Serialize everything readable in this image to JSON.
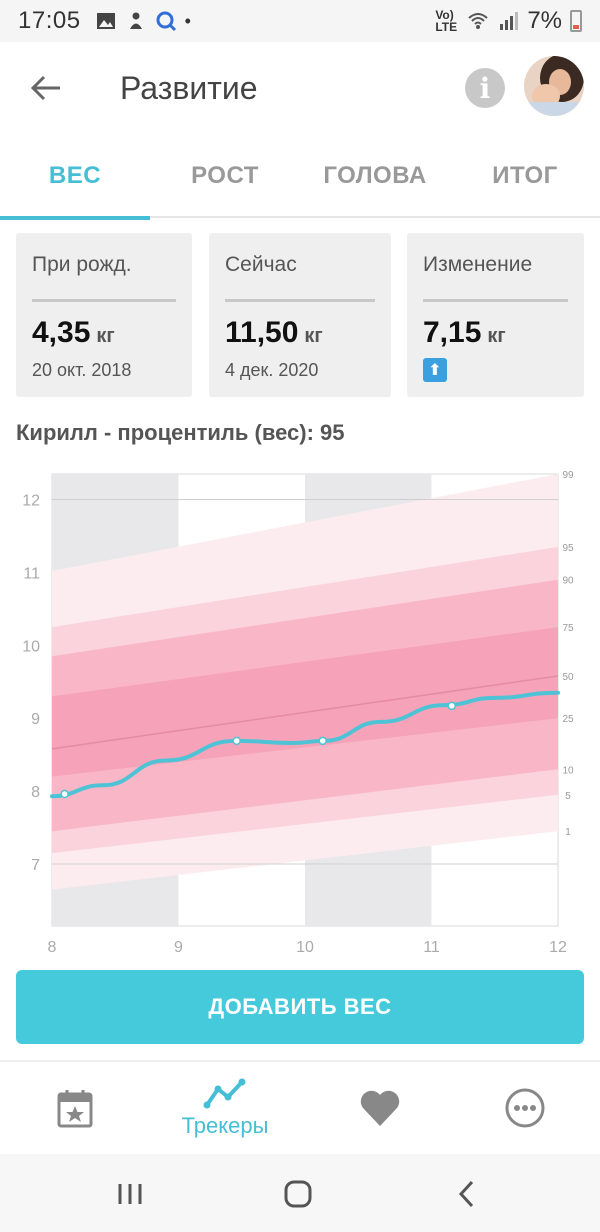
{
  "status_bar": {
    "time": "17:05",
    "network": "Vo) LTE",
    "battery": "7%"
  },
  "app_bar": {
    "title": "Развитие",
    "info_label": "i"
  },
  "tabs": [
    {
      "label": "ВЕС",
      "active": true
    },
    {
      "label": "РОСТ",
      "active": false
    },
    {
      "label": "ГОЛОВА",
      "active": false
    },
    {
      "label": "ИТОГ",
      "active": false
    }
  ],
  "cards": {
    "birth": {
      "title": "При рожд.",
      "value": "4,35",
      "unit": "кг",
      "date": "20 окт. 2018"
    },
    "now": {
      "title": "Сейчас",
      "value": "11,50",
      "unit": "кг",
      "date": "4 дек. 2020"
    },
    "change": {
      "title": "Изменение",
      "value": "7,15",
      "unit": "кг",
      "arrow": "⬆"
    }
  },
  "percentile_title": "Кирилл - процентиль (вес): 95",
  "chart_data": {
    "type": "line",
    "x_ticks": [
      "8",
      "9",
      "10",
      "11",
      "12"
    ],
    "y_ticks": [
      "7",
      "8",
      "9",
      "10",
      "11",
      "12"
    ],
    "xlim": [
      8,
      12
    ],
    "ylim": [
      6.15,
      12.35
    ],
    "percentile_labels": [
      "99",
      "95",
      "90",
      "75",
      "50",
      "25",
      "10",
      "5",
      "1"
    ],
    "bands": {
      "x": [
        8,
        12
      ],
      "p1": [
        6.65,
        7.45
      ],
      "p5": [
        7.15,
        7.95
      ],
      "p10": [
        7.45,
        8.3
      ],
      "p25": [
        8.2,
        9.0
      ],
      "p50": [
        8.58,
        9.58
      ],
      "p75": [
        9.3,
        10.25
      ],
      "p90": [
        9.85,
        10.9
      ],
      "p95": [
        10.25,
        11.35
      ],
      "p99": [
        11.02,
        12.35
      ]
    },
    "series": [
      {
        "values_x": [
          8.0,
          8.4,
          8.9,
          9.45,
          9.9,
          10.15,
          10.6,
          11.1,
          11.5,
          12.0
        ],
        "values_y": [
          7.93,
          8.08,
          8.42,
          8.69,
          8.66,
          8.69,
          8.95,
          9.18,
          9.28,
          9.35
        ]
      }
    ],
    "measurements": {
      "x": [
        8.1,
        9.46,
        10.14,
        11.16
      ],
      "y": [
        7.96,
        8.69,
        8.69,
        9.17
      ]
    },
    "colors": {
      "line": "#4ec3d6",
      "band_outer": "#fdecef",
      "band_mid1": "#fbd3dc",
      "band_mid2": "#f8b6c6",
      "band_inner": "#f6a2b8",
      "median": "#e68aa5",
      "column_shade": "#e8e8ea"
    }
  },
  "add_button": {
    "label": "ДОБАВИТЬ ВЕС"
  },
  "bottom_nav": {
    "trackers_label": "Трекеры"
  },
  "colors": {
    "accent": "#45bed6",
    "button": "#45cadb"
  }
}
